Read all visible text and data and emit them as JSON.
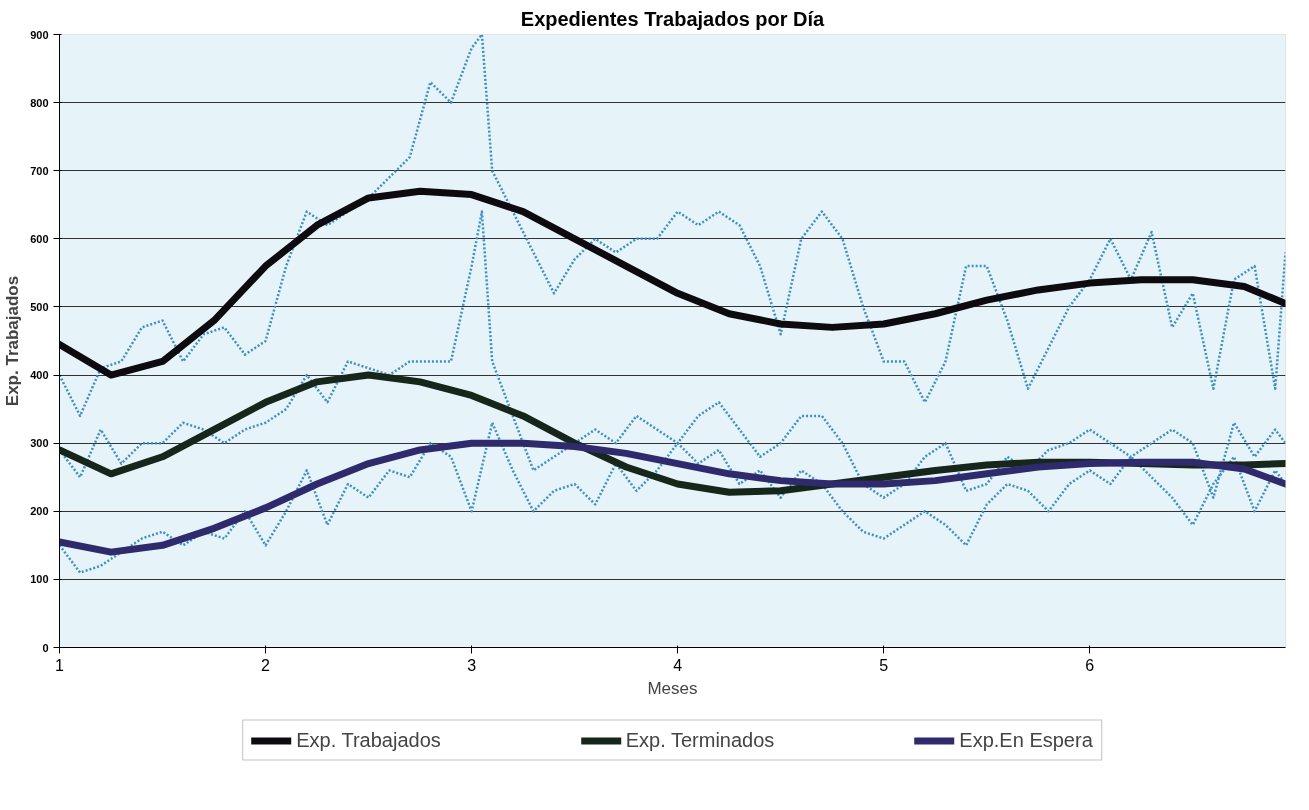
{
  "chart_data": {
    "type": "line",
    "title": "Expedientes Trabajados por Día",
    "xlabel": "Meses",
    "ylabel": "Exp. Trabajados",
    "xlim": [
      1,
      6.95
    ],
    "xticks": [
      1,
      2,
      3,
      4,
      5,
      6
    ],
    "ylim": [
      0,
      900
    ],
    "yticks": [
      0,
      100,
      200,
      300,
      400,
      500,
      600,
      700,
      800,
      900
    ],
    "grid": "y",
    "legend": "bottom",
    "line_style": "solid",
    "series": [
      {
        "color": "#3d8fc4",
        "line_style": "dotted",
        "x": [
          1.0,
          1.1,
          1.2,
          1.3,
          1.4,
          1.5,
          1.6,
          1.7,
          1.8,
          1.9,
          2.0,
          2.1,
          2.2,
          2.3,
          2.4,
          2.5,
          2.6,
          2.7,
          2.8,
          2.9,
          3.0,
          3.05,
          3.1,
          3.2,
          3.3,
          3.4,
          3.5,
          3.6,
          3.7,
          3.8,
          3.9,
          4.0,
          4.1,
          4.2,
          4.3,
          4.4,
          4.5,
          4.6,
          4.7,
          4.8,
          4.9,
          5.0,
          5.1,
          5.2,
          5.3,
          5.4,
          5.5,
          5.6,
          5.7,
          5.8,
          5.9,
          6.0,
          6.1,
          6.2,
          6.3,
          6.4,
          6.5,
          6.6,
          6.7,
          6.8,
          6.9,
          6.95
        ],
        "values": [
          400,
          340,
          410,
          420,
          470,
          480,
          420,
          460,
          470,
          430,
          450,
          560,
          640,
          620,
          640,
          660,
          690,
          720,
          830,
          800,
          880,
          900,
          700,
          640,
          580,
          520,
          570,
          600,
          580,
          600,
          600,
          640,
          620,
          640,
          620,
          560,
          460,
          600,
          640,
          600,
          500,
          420,
          420,
          360,
          420,
          560,
          560,
          480,
          380,
          440,
          500,
          540,
          600,
          540,
          610,
          470,
          520,
          380,
          540,
          560,
          380,
          580
        ]
      },
      {
        "color": "#3d8fc4",
        "line_style": "dotted",
        "x": [
          1.0,
          1.1,
          1.2,
          1.3,
          1.4,
          1.5,
          1.6,
          1.7,
          1.8,
          1.9,
          2.0,
          2.1,
          2.2,
          2.3,
          2.4,
          2.5,
          2.6,
          2.7,
          2.8,
          2.9,
          3.0,
          3.05,
          3.1,
          3.2,
          3.3,
          3.4,
          3.5,
          3.6,
          3.7,
          3.8,
          3.9,
          4.0,
          4.1,
          4.2,
          4.3,
          4.4,
          4.5,
          4.6,
          4.7,
          4.8,
          4.9,
          5.0,
          5.1,
          5.2,
          5.3,
          5.4,
          5.5,
          5.6,
          5.7,
          5.8,
          5.9,
          6.0,
          6.1,
          6.2,
          6.3,
          6.4,
          6.5,
          6.6,
          6.7,
          6.8,
          6.9,
          6.95
        ],
        "values": [
          290,
          250,
          320,
          270,
          300,
          300,
          330,
          320,
          300,
          320,
          330,
          350,
          400,
          360,
          420,
          410,
          400,
          420,
          420,
          420,
          560,
          640,
          420,
          340,
          260,
          280,
          300,
          320,
          300,
          340,
          320,
          300,
          340,
          360,
          320,
          280,
          300,
          340,
          340,
          300,
          240,
          220,
          240,
          280,
          300,
          230,
          240,
          280,
          260,
          290,
          300,
          320,
          300,
          280,
          300,
          320,
          300,
          220,
          330,
          280,
          320,
          300
        ]
      },
      {
        "color": "#3d8fc4",
        "line_style": "dotted",
        "x": [
          1.0,
          1.1,
          1.2,
          1.3,
          1.4,
          1.5,
          1.6,
          1.7,
          1.8,
          1.9,
          2.0,
          2.1,
          2.2,
          2.3,
          2.4,
          2.5,
          2.6,
          2.7,
          2.8,
          2.9,
          3.0,
          3.1,
          3.2,
          3.3,
          3.4,
          3.5,
          3.6,
          3.7,
          3.8,
          3.9,
          4.0,
          4.1,
          4.2,
          4.3,
          4.4,
          4.5,
          4.6,
          4.7,
          4.8,
          4.9,
          5.0,
          5.1,
          5.2,
          5.3,
          5.4,
          5.5,
          5.6,
          5.7,
          5.8,
          5.9,
          6.0,
          6.1,
          6.2,
          6.3,
          6.4,
          6.5,
          6.6,
          6.7,
          6.8,
          6.9,
          6.95
        ],
        "values": [
          150,
          110,
          120,
          140,
          160,
          170,
          150,
          170,
          160,
          200,
          150,
          200,
          260,
          180,
          240,
          220,
          260,
          250,
          300,
          280,
          200,
          330,
          260,
          200,
          230,
          240,
          210,
          270,
          230,
          260,
          300,
          270,
          290,
          240,
          260,
          220,
          260,
          240,
          200,
          170,
          160,
          180,
          200,
          180,
          150,
          210,
          240,
          230,
          200,
          240,
          260,
          240,
          280,
          250,
          220,
          180,
          240,
          280,
          200,
          260,
          240
        ]
      },
      {
        "name": "Exp. Trabajados",
        "color": "#0d0a10",
        "x": [
          1,
          1.25,
          1.5,
          1.75,
          2,
          2.25,
          2.5,
          2.75,
          3,
          3.25,
          3.5,
          3.75,
          4,
          4.25,
          4.5,
          4.75,
          5,
          5.25,
          5.5,
          5.75,
          6,
          6.25,
          6.5,
          6.75,
          6.95
        ],
        "values": [
          445,
          400,
          420,
          480,
          560,
          620,
          660,
          670,
          665,
          640,
          600,
          560,
          520,
          490,
          475,
          470,
          475,
          490,
          510,
          525,
          535,
          540,
          540,
          530,
          505
        ]
      },
      {
        "name": "Exp. Terminados",
        "color": "#16261a",
        "x": [
          1,
          1.25,
          1.5,
          1.75,
          2,
          2.25,
          2.5,
          2.75,
          3,
          3.25,
          3.5,
          3.75,
          4,
          4.25,
          4.5,
          4.75,
          5,
          5.25,
          5.5,
          5.75,
          6,
          6.25,
          6.5,
          6.75,
          6.95
        ],
        "values": [
          290,
          255,
          280,
          320,
          360,
          390,
          400,
          390,
          370,
          340,
          300,
          265,
          240,
          228,
          230,
          240,
          250,
          260,
          268,
          272,
          272,
          270,
          268,
          268,
          270
        ]
      },
      {
        "name": "Exp.En Espera",
        "color": "#2e2a6b",
        "x": [
          1,
          1.25,
          1.5,
          1.75,
          2,
          2.25,
          2.5,
          2.75,
          3,
          3.25,
          3.5,
          3.75,
          4,
          4.25,
          4.5,
          4.75,
          5,
          5.25,
          5.5,
          5.75,
          6,
          6.25,
          6.5,
          6.75,
          6.95
        ],
        "values": [
          155,
          140,
          150,
          175,
          205,
          240,
          270,
          290,
          300,
          300,
          295,
          285,
          270,
          255,
          245,
          240,
          240,
          245,
          255,
          265,
          270,
          272,
          272,
          262,
          240
        ]
      }
    ]
  }
}
